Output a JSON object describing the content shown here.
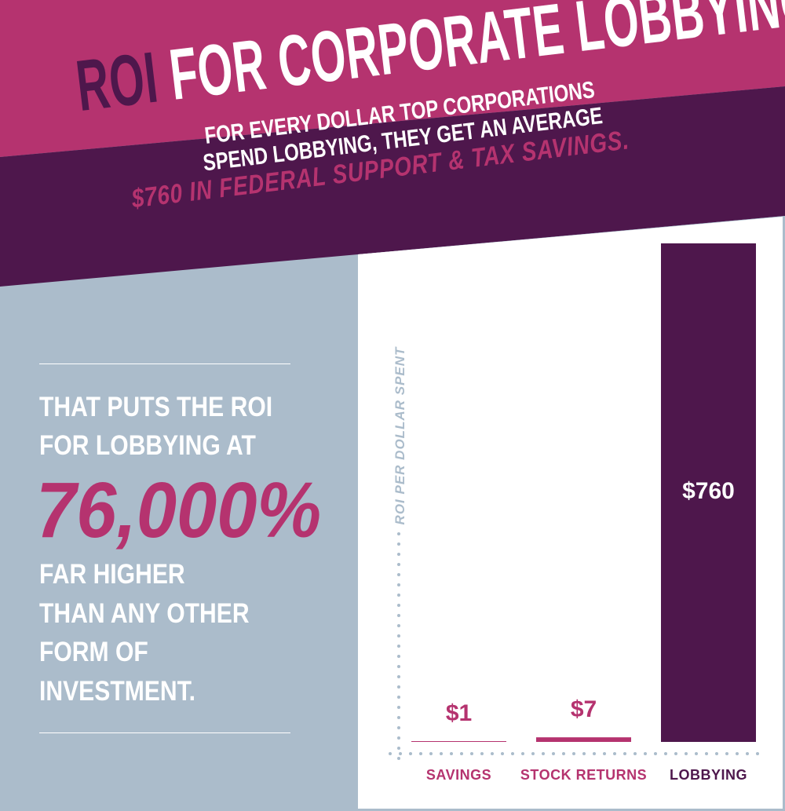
{
  "colors": {
    "pink": "#b5336f",
    "purple": "#4e174c",
    "grey": "#abbccb",
    "white": "#ffffff"
  },
  "header": {
    "title_highlight": "ROI",
    "title_rest": "FOR CORPORATE LOBBYING",
    "subtitle_line1": "FOR EVERY DOLLAR TOP CORPORATIONS",
    "subtitle_line2": "SPEND LOBBYING, THEY GET AN AVERAGE",
    "subtitle_highlight": "$760 IN FEDERAL SUPPORT & TAX SAVINGS."
  },
  "left_panel": {
    "line1": "THAT PUTS THE ROI",
    "line2": "FOR LOBBYING AT",
    "big_number": "76,000%",
    "line3": "FAR HIGHER",
    "line4": "THAN ANY OTHER",
    "line5": "FORM OF",
    "line6": "INVESTMENT."
  },
  "chart_data": {
    "type": "bar",
    "title": "ROI FOR CORPORATE LOBBYING",
    "ylabel": "ROI PER DOLLAR SPENT",
    "xlabel": "",
    "categories": [
      "SAVINGS",
      "STOCK RETURNS",
      "LOBBYING"
    ],
    "values": [
      1,
      7,
      760
    ],
    "value_labels": [
      "$1",
      "$7",
      "$760"
    ],
    "ylim": [
      0,
      760
    ],
    "grid": false
  }
}
